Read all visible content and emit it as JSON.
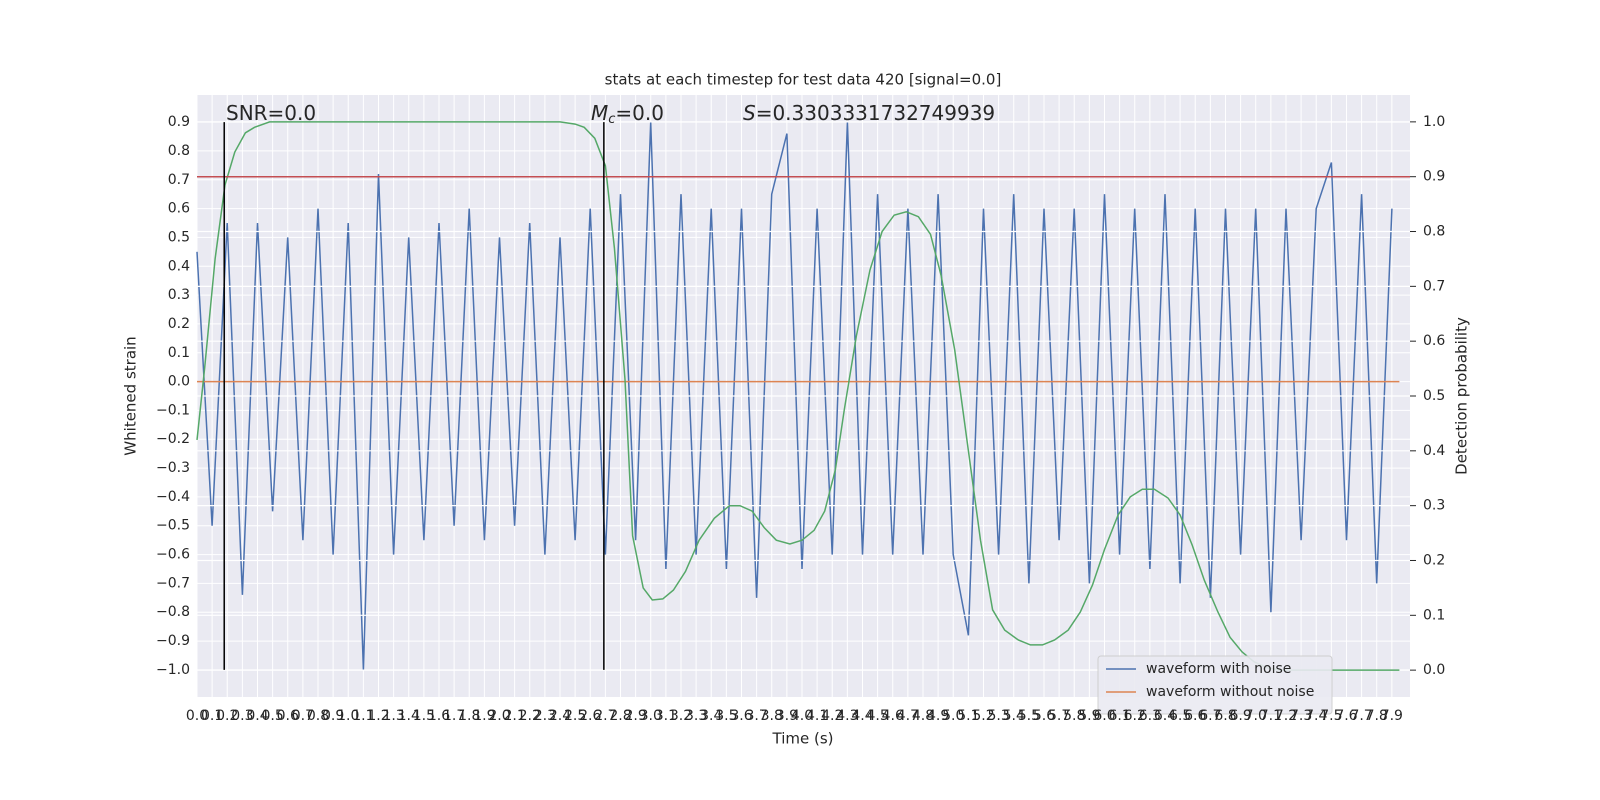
{
  "chart_data": {
    "type": "line",
    "title": "stats at each timestep for test data 420 [signal=0.0]",
    "xlabel": "Time (s)",
    "ylabel": "Whitened strain",
    "y2label": "Detection probability",
    "annotations": [
      {
        "text": "SNR=0.0"
      },
      {
        "text": "M",
        "sub": "c",
        "tail": "=0.0"
      },
      {
        "text": "S",
        "tail": "=0.3303331732749939"
      }
    ],
    "xlim": [
      0,
      8.02
    ],
    "ylim": [
      -1.094,
      0.994
    ],
    "y2lim": [
      -0.049,
      1.049
    ],
    "xticks": [
      {
        "value": 0,
        "label": "0.0"
      },
      0.1,
      0.2,
      0.3,
      0.4,
      0.5,
      0.6,
      0.7,
      0.8,
      0.9,
      {
        "value": 1,
        "label": "1.0"
      },
      1.1,
      1.2,
      1.3,
      1.4,
      1.5,
      1.6,
      1.7,
      1.8,
      1.9,
      {
        "value": 2,
        "label": "2.0"
      },
      2.1,
      2.2,
      2.3,
      2.4,
      2.5,
      2.6,
      2.7,
      2.8,
      2.9,
      {
        "value": 3,
        "label": "3.0"
      },
      3.1,
      3.2,
      3.3,
      3.4,
      3.5,
      3.6,
      3.7,
      3.8,
      3.9,
      {
        "value": 4,
        "label": "4.0"
      },
      4.1,
      4.2,
      4.3,
      4.4,
      4.5,
      4.6,
      4.7,
      4.8,
      4.9,
      {
        "value": 5,
        "label": "5.0"
      },
      5.1,
      5.2,
      5.3,
      5.4,
      5.5,
      5.6,
      5.7,
      5.8,
      5.9,
      {
        "value": 6,
        "label": "6.0"
      },
      6.1,
      6.2,
      6.3,
      6.4,
      6.5,
      6.6,
      6.7,
      6.8,
      6.9,
      {
        "value": 7,
        "label": "7.0"
      },
      7.1,
      7.2,
      7.3,
      7.4,
      7.5,
      7.6,
      7.7,
      7.8,
      7.9
    ],
    "yticks": [
      {
        "value": -1.0,
        "label": "−1.0"
      },
      {
        "value": -0.9,
        "label": "−0.9"
      },
      {
        "value": -0.8,
        "label": "−0.8"
      },
      {
        "value": -0.7,
        "label": "−0.7"
      },
      {
        "value": -0.6,
        "label": "−0.6"
      },
      {
        "value": -0.5,
        "label": "−0.5"
      },
      {
        "value": -0.4,
        "label": "−0.4"
      },
      {
        "value": -0.3,
        "label": "−0.3"
      },
      {
        "value": -0.2,
        "label": "−0.2"
      },
      {
        "value": -0.1,
        "label": "−0.1"
      },
      {
        "value": 0,
        "label": "0.0"
      },
      0.1,
      0.2,
      0.3,
      0.4,
      0.5,
      0.6,
      0.7,
      0.8,
      0.9
    ],
    "y2ticks": [
      {
        "value": 0,
        "label": "0.0"
      },
      0.1,
      0.2,
      0.3,
      0.4,
      0.5,
      0.6,
      0.7,
      0.8,
      0.9,
      {
        "value": 1,
        "label": "1.0"
      }
    ],
    "grid": true,
    "legend": "lower right",
    "series": [
      {
        "name": "waveform with noise",
        "color": "#4c72b0",
        "x": [
          0,
          0.1,
          0.2,
          0.3,
          0.4,
          0.5,
          0.6,
          0.7,
          0.8,
          0.9,
          1,
          1.1,
          1.2,
          1.3,
          1.4,
          1.5,
          1.6,
          1.7,
          1.8,
          1.9,
          2,
          2.1,
          2.2,
          2.3,
          2.4,
          2.5,
          2.6,
          2.7,
          2.8,
          2.9,
          3,
          3.1,
          3.2,
          3.3,
          3.4,
          3.5,
          3.6,
          3.7,
          3.8,
          3.9,
          4,
          4.1,
          4.2,
          4.3,
          4.4,
          4.5,
          4.6,
          4.7,
          4.8,
          4.9,
          5,
          5.1,
          5.2,
          5.3,
          5.4,
          5.5,
          5.6,
          5.7,
          5.8,
          5.9,
          6,
          6.1,
          6.2,
          6.3,
          6.4,
          6.5,
          6.6,
          6.7,
          6.8,
          6.9,
          7,
          7.1,
          7.2,
          7.3,
          7.4,
          7.5,
          7.6,
          7.7,
          7.8,
          7.9
        ],
        "values": [
          0.45,
          -0.5,
          0.55,
          -0.74,
          0.55,
          -0.45,
          0.5,
          -0.55,
          0.6,
          -0.6,
          0.55,
          -1.0,
          0.72,
          -0.6,
          0.5,
          -0.55,
          0.55,
          -0.5,
          0.6,
          -0.55,
          0.5,
          -0.5,
          0.55,
          -0.6,
          0.5,
          -0.55,
          0.6,
          -0.6,
          0.65,
          -0.55,
          0.9,
          -0.65,
          0.65,
          -0.6,
          0.6,
          -0.65,
          0.6,
          -0.75,
          0.65,
          0.86,
          -0.65,
          0.6,
          -0.6,
          0.9,
          -0.6,
          0.65,
          -0.6,
          0.6,
          -0.6,
          0.65,
          -0.6,
          -0.88,
          0.6,
          -0.6,
          0.65,
          -0.7,
          0.6,
          -0.55,
          0.6,
          -0.7,
          0.65,
          -0.6,
          0.6,
          -0.65,
          0.65,
          -0.7,
          0.6,
          -0.75,
          0.6,
          -0.6,
          0.6,
          -0.8,
          0.6,
          -0.55,
          0.6,
          0.76,
          -0.55,
          0.65,
          -0.7,
          0.6
        ]
      },
      {
        "name": "waveform without noise",
        "color": "#dd8452",
        "x": [
          0,
          7.95
        ],
        "values": [
          0,
          0
        ]
      },
      {
        "color": "#55a868",
        "axis": "y2",
        "x": [
          0,
          0.05,
          0.12,
          0.185,
          0.25,
          0.32,
          0.38,
          0.48,
          2.4,
          2.5,
          2.56,
          2.63,
          2.7,
          2.76,
          2.83,
          2.88,
          2.95,
          3.01,
          3.08,
          3.15,
          3.23,
          3.32,
          3.42,
          3.52,
          3.59,
          3.67,
          3.75,
          3.83,
          3.92,
          4.0,
          4.08,
          4.15,
          4.22,
          4.28,
          4.36,
          4.45,
          4.53,
          4.61,
          4.69,
          4.77,
          4.85,
          4.92,
          5.01,
          5.1,
          5.18,
          5.26,
          5.34,
          5.43,
          5.51,
          5.59,
          5.67,
          5.76,
          5.84,
          5.92,
          6.0,
          6.09,
          6.17,
          6.25,
          6.33,
          6.42,
          6.5,
          6.58,
          6.66,
          6.75,
          6.83,
          6.91,
          6.99,
          7.08,
          7.16,
          7.95
        ],
        "values": [
          0.42,
          0.55,
          0.75,
          0.885,
          0.945,
          0.98,
          0.99,
          1.0,
          1.0,
          0.996,
          0.99,
          0.97,
          0.92,
          0.77,
          0.53,
          0.245,
          0.15,
          0.128,
          0.13,
          0.146,
          0.18,
          0.237,
          0.277,
          0.3,
          0.3,
          0.29,
          0.26,
          0.237,
          0.23,
          0.237,
          0.255,
          0.29,
          0.365,
          0.475,
          0.61,
          0.73,
          0.8,
          0.83,
          0.836,
          0.827,
          0.795,
          0.72,
          0.584,
          0.4,
          0.237,
          0.11,
          0.073,
          0.055,
          0.046,
          0.046,
          0.055,
          0.073,
          0.106,
          0.155,
          0.22,
          0.283,
          0.316,
          0.33,
          0.33,
          0.314,
          0.283,
          0.228,
          0.164,
          0.106,
          0.06,
          0.033,
          0.015,
          0.004,
          0,
          0
        ]
      }
    ],
    "hlines": [
      {
        "value": 0.9,
        "axis": "y2",
        "color": "#c44e52"
      }
    ],
    "vlines": [
      {
        "x": 0.18,
        "ymin": -1.0,
        "ymax": 0.9,
        "color": "#000000"
      },
      {
        "x": 2.69,
        "ymin": -1.0,
        "ymax": 0.9,
        "color": "#000000"
      }
    ]
  }
}
